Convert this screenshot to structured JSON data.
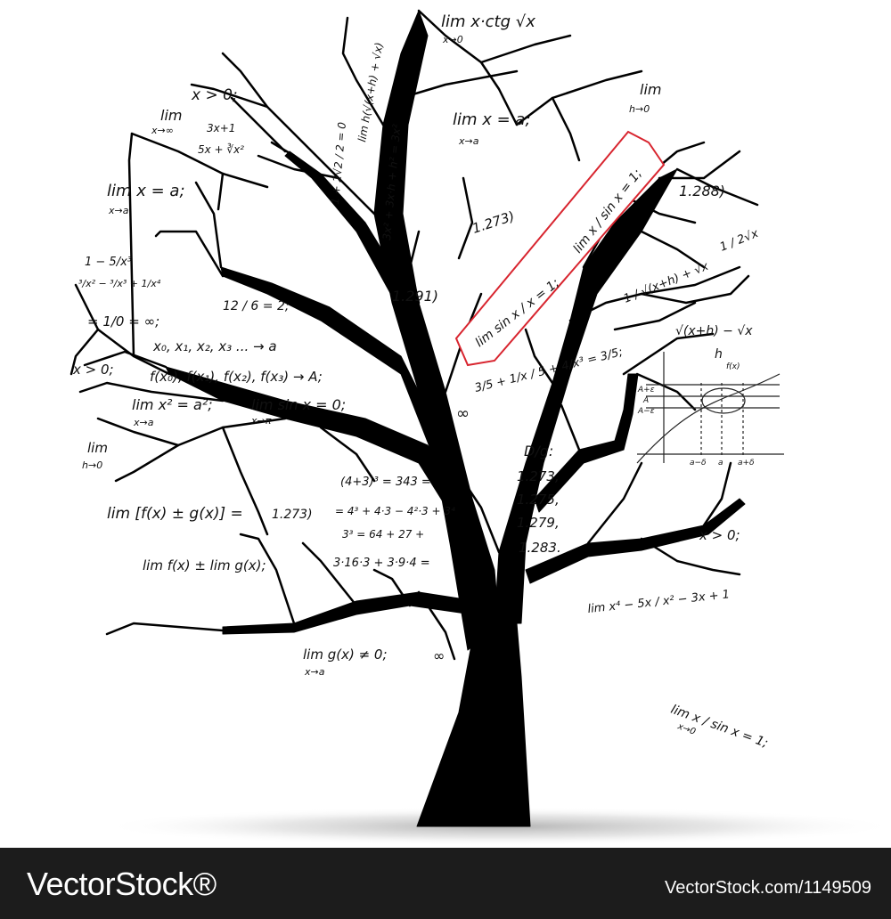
{
  "footer": {
    "brand": "VectorStock®",
    "image_id": "VectorStock.com/1149509"
  },
  "colors": {
    "ink": "#111111",
    "highlight": "#d8252f",
    "footer_bg": "#1c1c1c"
  },
  "formulas": [
    "lim x·ctg √x",
    "x→0",
    "x > 0;",
    "lim",
    "h→0",
    "lim x = a;",
    "x→a",
    "lim x = a;",
    "x→a",
    "lim",
    "x→∞",
    "3x+1",
    "5x + ∛x²",
    "1.288)",
    "1.273)",
    "1.291)",
    "lim sin x / x = 1;",
    "lim x / sin x = 1;",
    "1 − 5/x³",
    "³/x² − ³/x³ + 1/x⁴",
    "= 1/0 = ∞;",
    "12 / 6 = 2;",
    "x₀, x₁, x₂, x₃ ... → a",
    "x > 0;",
    "f(x₀), f(x₁), f(x₂), f(x₃) → A;",
    "lim x² = a²;",
    "x→a",
    "lim sin x = 0;",
    "x→π",
    "3/5 + 1/x / 5 + 4/x³ = 3/5;",
    "√(x+h) − √x",
    "h",
    "1 / √(x+h) + √x",
    "1 / 2√x",
    "∞",
    "D/g:",
    "1.273,",
    "1.275,",
    "1.279,",
    "1.283.",
    "lim",
    "h→0",
    "lim [f(x) ± g(x)] =",
    "1.273)",
    "(4+3)³ = 343 =",
    "= 4³ + 4·3 − 4²·3 + 3⁴",
    "3³ = 64 + 27 +",
    "3·16·3 + 3·9·4 =",
    "lim f(x) ± lim g(x);",
    "x > 0;",
    "lim x⁴ − 5x / x² − 3x + 1",
    "lim g(x) ≠ 0;",
    "x→a",
    "∞",
    "lim x / sin x = 1;",
    "x→0",
    "3x² + 3x·h + h² = 3x²",
    "1 + 2√2 / 2 = 0",
    "lim h(√(x+h) + √x)",
    "A+ε",
    "A",
    "A−ε",
    "f(x)",
    "a−δ",
    "a",
    "a+δ"
  ]
}
